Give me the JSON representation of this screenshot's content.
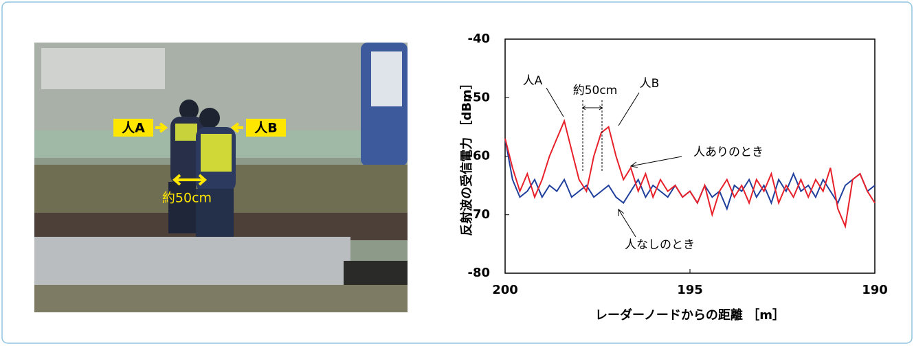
{
  "photo": {
    "labels": [
      "人A",
      "人B",
      "約50cm"
    ]
  },
  "chart_data": {
    "type": "line",
    "y_label": "反射波の受信電力 ［dBm］",
    "x_label": "レーダーノードからの距離 ［m］",
    "annotations": [
      "人A",
      "約50cm",
      "人B",
      "人ありのとき",
      "人なしのとき"
    ],
    "x": [
      200,
      199.8,
      199.6,
      199.4,
      199.2,
      199,
      198.8,
      198.6,
      198.4,
      198.2,
      198,
      197.8,
      197.6,
      197.4,
      197.2,
      197,
      196.8,
      196.6,
      196.4,
      196.2,
      196,
      195.8,
      195.6,
      195.4,
      195.2,
      195,
      194.8,
      194.6,
      194.4,
      194.2,
      194,
      193.8,
      193.6,
      193.4,
      193.2,
      193,
      192.8,
      192.6,
      192.4,
      192.2,
      192,
      191.8,
      191.6,
      191.4,
      191.2,
      191,
      190.8,
      190.6,
      190.4,
      190.2,
      190
    ],
    "series": [
      {
        "color": "#e8202a",
        "values": [
          -57,
          -62,
          -66,
          -63,
          -67,
          -64,
          -60,
          -57,
          -54,
          -59,
          -64,
          -66,
          -60,
          -56,
          -55,
          -60,
          -64,
          -62,
          -66,
          -63,
          -67,
          -64,
          -66,
          -65,
          -67,
          -66,
          -68,
          -65,
          -70,
          -66,
          -64,
          -67,
          -65,
          -68,
          -64,
          -66,
          -63,
          -68,
          -65,
          -67,
          -64,
          -67,
          -64,
          -66,
          -62,
          -69,
          -72,
          -64,
          -63,
          -66,
          -68
        ]
      },
      {
        "color": "#1f3f9c",
        "values": [
          -57,
          -64,
          -67,
          -66,
          -64,
          -67,
          -65,
          -66,
          -64,
          -67,
          -66,
          -65,
          -67,
          -66,
          -65,
          -67,
          -68,
          -66,
          -64,
          -67,
          -65,
          -66,
          -67,
          -65,
          -67,
          -66,
          -68,
          -65,
          -67,
          -66,
          -69,
          -65,
          -66,
          -64,
          -67,
          -65,
          -68,
          -64,
          -66,
          -63,
          -66,
          -65,
          -67,
          -64,
          -66,
          -68,
          -65,
          -64,
          -63,
          -66,
          -65
        ]
      }
    ],
    "xlim": [
      200,
      190
    ],
    "xticks": [
      200,
      195,
      190
    ],
    "ylim": [
      -80,
      -40
    ],
    "yticks": [
      -40,
      -50,
      -60,
      -70,
      -80
    ]
  }
}
